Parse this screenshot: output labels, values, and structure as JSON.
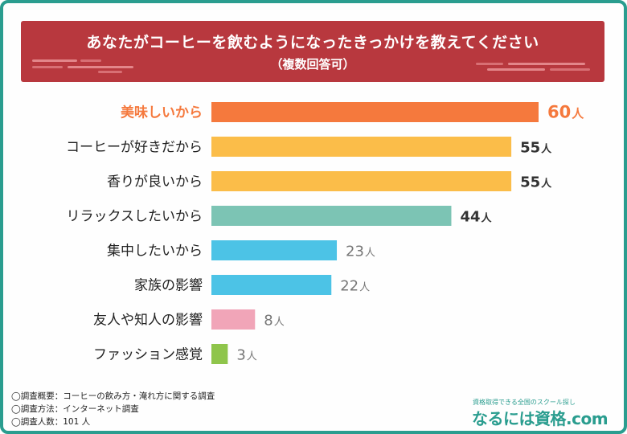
{
  "header": {
    "title": "あなたがコーヒーを飲むようになったきっかけを教えてください",
    "subtitle": "（複数回答可）"
  },
  "chart_data": {
    "type": "bar",
    "orientation": "horizontal",
    "unit": "人",
    "categories": [
      "美味しいから",
      "コーヒーが好きだから",
      "香りが良いから",
      "リラックスしたいから",
      "集中したいから",
      "家族の影響",
      "友人や知人の影響",
      "ファッション感覚"
    ],
    "values": [
      60,
      55,
      55,
      44,
      23,
      22,
      8,
      3
    ],
    "xlim": [
      0,
      60
    ],
    "grid": false,
    "legend": "none",
    "colors": [
      "#f5793d",
      "#fbbd49",
      "#fbbd49",
      "#7cc4b4",
      "#4cc3e6",
      "#4cc3e6",
      "#f1a5b8",
      "#8fc54b"
    ],
    "highlight_index": 0,
    "highlight_color": "#f5793d",
    "label_color": "#222222",
    "dim_value_color": "#777777"
  },
  "footer": {
    "notes": [
      "◯調査概要：コーヒーの飲み方・淹れ方に関する調査",
      "◯調査方法：インターネット調査",
      "◯調査人数：101 人"
    ]
  },
  "brand": {
    "tagline": "資格取得できる全国のスクール探し",
    "name": "なるには資格.com",
    "color": "#2a9d8f"
  }
}
